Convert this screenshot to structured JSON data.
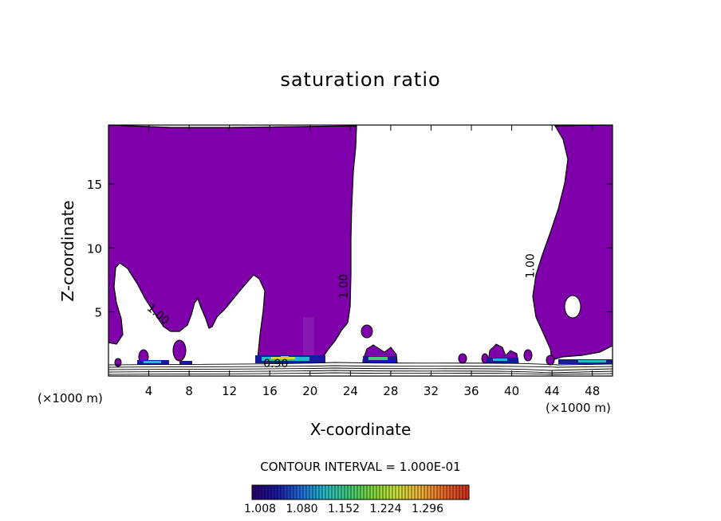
{
  "chart_data": {
    "type": "contour",
    "title": "saturation ratio",
    "xlabel": "X-coordinate",
    "ylabel": "Z-coordinate",
    "x_unit": "(×1000 m)",
    "y_unit": "(×1000 m)",
    "xlim": [
      0,
      50
    ],
    "ylim": [
      0,
      19.6
    ],
    "x_ticks": [
      4,
      8,
      12,
      16,
      20,
      24,
      28,
      32,
      36,
      40,
      44,
      48
    ],
    "y_ticks": [
      5,
      10,
      15
    ],
    "contour_labels": [
      {
        "text": "1.00",
        "x": 4.7,
        "z": 4.6,
        "angle": 40
      },
      {
        "text": "1.00",
        "x": 23.7,
        "z": 7.0,
        "angle": -90
      },
      {
        "text": "1.00",
        "x": 42.2,
        "z": 8.6,
        "angle": -90
      },
      {
        "text": "0.90",
        "x": 16.6,
        "z": 0.7,
        "angle": 0
      }
    ],
    "contour_interval": "CONTOUR INTERVAL = 1.000E-01",
    "colorbar": {
      "min": 1.0,
      "max": 1.33,
      "tick_labels": [
        "1.008",
        "1.080",
        "1.152",
        "1.224",
        "1.296"
      ],
      "colors": [
        "#2a0070",
        "#1a1aa0",
        "#1f6bd6",
        "#27b9c9",
        "#3fc97a",
        "#7ed63a",
        "#c9e03a",
        "#f0b43a",
        "#e86a2a",
        "#d0301f"
      ]
    },
    "colors": {
      "supersaturated_fill": "#7f00aa",
      "background": "#ffffff"
    }
  }
}
